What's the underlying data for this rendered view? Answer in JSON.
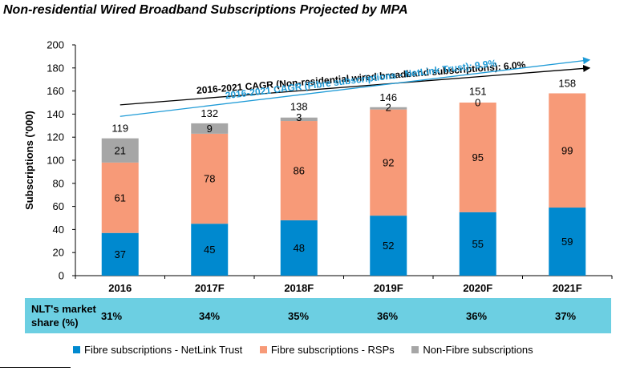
{
  "title": "Non-residential Wired Broadband Subscriptions Projected by MPA",
  "chart_data": {
    "type": "bar",
    "stacked": true,
    "title": "Non-residential Wired Broadband Subscriptions Projected by MPA",
    "ylabel": "Subscriptions ('000)",
    "xlabel": "",
    "ylim": [
      0,
      200
    ],
    "yticks": [
      0,
      20,
      40,
      60,
      80,
      100,
      120,
      140,
      160,
      180,
      200
    ],
    "categories": [
      "2016",
      "2017F",
      "2018F",
      "2019F",
      "2020F",
      "2021F"
    ],
    "series": [
      {
        "name": "Fibre subscriptions - NetLink Trust",
        "color": "#0089cf",
        "values": [
          37,
          45,
          48,
          52,
          55,
          59
        ]
      },
      {
        "name": "Fibre subscriptions - RSPs",
        "color": "#f79a78",
        "values": [
          61,
          78,
          86,
          92,
          95,
          99
        ]
      },
      {
        "name": "Non-Fibre subscriptions",
        "color": "#a6a6a6",
        "values": [
          21,
          9,
          3,
          2,
          0,
          null
        ]
      }
    ],
    "segment_labels": [
      [
        "37",
        "45",
        "48",
        "52",
        "55",
        "59"
      ],
      [
        "61",
        "78",
        "86",
        "92",
        "95",
        "99"
      ],
      [
        "21",
        "9",
        "3",
        "2",
        "0",
        ""
      ]
    ],
    "totals": [
      119,
      132,
      138,
      146,
      151,
      158
    ],
    "annotations": [
      {
        "text": "2016-2021 CAGR (Non-residential wired broadband subscriptions): 6.0%",
        "color": "#000000",
        "from": [
          0,
          148
        ],
        "to": [
          5,
          180
        ]
      },
      {
        "text": "2016-2021 CAGR (Fibre subscriptions - NetLink Trust): 9.9%",
        "color": "#1f9bd7",
        "from": [
          0,
          138
        ],
        "to": [
          5,
          187
        ]
      }
    ],
    "grid": false,
    "legend_position": "bottom"
  },
  "market_share": {
    "label": "NLT's market\nshare (%)",
    "values": [
      "31%",
      "34%",
      "35%",
      "36%",
      "36%",
      "37%"
    ]
  }
}
